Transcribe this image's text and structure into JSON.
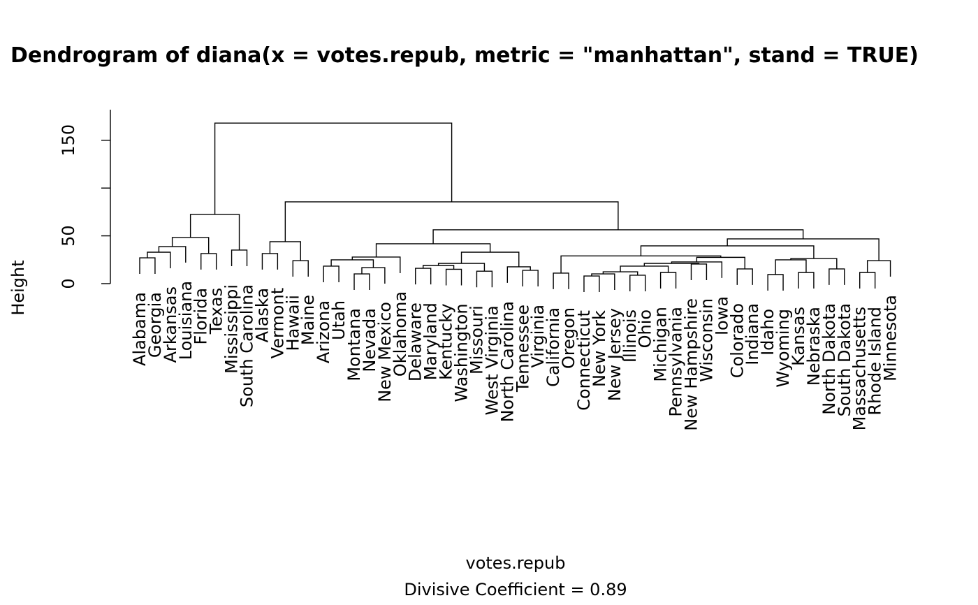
{
  "chart_data": {
    "type": "dendrogram",
    "title": "Dendrogram of  diana(x = votes.repub, metric = \"manhattan\", stand = TRUE)",
    "y_label": "Height",
    "x_label": "votes.repub",
    "subtitle": "Divisive Coefficient =  0.89",
    "ylim": [
      0,
      182
    ],
    "yticks": [
      0,
      50,
      {
        "value": 100,
        "label": null
      },
      150
    ],
    "color": "#000000",
    "tree": {
      "height": 168,
      "children": [
        {
          "height": 72.4,
          "children": [
            {
              "height": 48.3,
              "children": [
                {
                  "height": 38.8,
                  "children": [
                    {
                      "height": 32.9,
                      "children": [
                        {
                          "height": 27,
                          "children": [
                            "Alabama",
                            "Georgia"
                          ]
                        },
                        "Arkansas"
                      ]
                    },
                    "Louisiana"
                  ]
                },
                {
                  "height": 31.5,
                  "children": [
                    "Florida",
                    "Texas"
                  ]
                }
              ]
            },
            {
              "height": 35.1,
              "children": [
                "Mississippi",
                "South Carolina"
              ]
            }
          ]
        },
        {
          "height": 85.6,
          "children": [
            {
              "height": 43.9,
              "children": [
                {
                  "height": 31.5,
                  "children": [
                    "Alaska",
                    "Vermont"
                  ]
                },
                {
                  "height": 24.1,
                  "children": [
                    "Hawaii",
                    "Maine"
                  ]
                }
              ]
            },
            {
              "height": 56.3,
              "children": [
                {
                  "height": 41.7,
                  "children": [
                    {
                      "height": 27.8,
                      "children": [
                        {
                          "height": 24.9,
                          "children": [
                            {
                              "height": 18.3,
                              "children": [
                                "Arizona",
                                "Utah"
                              ]
                            },
                            {
                              "height": 16.8,
                              "children": [
                                {
                                  "height": 10.2,
                                  "children": [
                                    "Montana",
                                    "Nevada"
                                  ]
                                },
                                "New Mexico"
                              ]
                            }
                          ]
                        },
                        "Oklahoma"
                      ]
                    },
                    {
                      "height": 32.9,
                      "children": [
                        {
                          "height": 21.2,
                          "children": [
                            {
                              "height": 19,
                              "children": [
                                {
                                  "height": 16,
                                  "children": [
                                    "Delaware",
                                    "Maryland"
                                  ]
                                },
                                {
                                  "height": 15,
                                  "children": [
                                    "Kentucky",
                                    "Washington"
                                  ]
                                }
                              ]
                            },
                            {
                              "height": 13,
                              "children": [
                                "Missouri",
                                "West Virginia"
                              ]
                            }
                          ]
                        },
                        {
                          "height": 17.6,
                          "children": [
                            "North Carolina",
                            {
                              "height": 13.9,
                              "children": [
                                "Tennessee",
                                "Virginia"
                              ]
                            }
                          ]
                        }
                      ]
                    }
                  ]
                },
                {
                  "height": 46.8,
                  "children": [
                    {
                      "height": 39.5,
                      "children": [
                        {
                          "height": 29,
                          "children": [
                            {
                              "height": 11,
                              "children": [
                                "California",
                                "Oregon"
                              ]
                            },
                            {
                              "height": 27.5,
                              "children": [
                                {
                                  "height": 22.7,
                                  "children": [
                                    {
                                      "height": 21.2,
                                      "children": [
                                        {
                                          "height": 18.3,
                                          "children": [
                                            {
                                              "height": 12.4,
                                              "children": [
                                                {
                                                  "height": 10.2,
                                                  "children": [
                                                    {
                                                      "height": 8,
                                                      "children": [
                                                        "Connecticut",
                                                        "New York"
                                                      ]
                                                    },
                                                    "New Jersey"
                                                  ]
                                                },
                                                {
                                                  "height": 8.8,
                                                  "children": [
                                                    "Illinois",
                                                    "Ohio"
                                                  ]
                                                }
                                              ]
                                            },
                                            {
                                              "height": 11.7,
                                              "children": [
                                                "Michigan",
                                                "Pennsylvania"
                                              ]
                                            }
                                          ]
                                        },
                                        {
                                          "height": 20.5,
                                          "children": [
                                            "New Hampshire",
                                            "Wisconsin"
                                          ]
                                        }
                                      ]
                                    },
                                    "Iowa"
                                  ]
                                },
                                {
                                  "height": 15.4,
                                  "children": [
                                    "Colorado",
                                    "Indiana"
                                  ]
                                }
                              ]
                            }
                          ]
                        },
                        {
                          "height": 26.3,
                          "children": [
                            {
                              "height": 24.9,
                              "children": [
                                {
                                  "height": 9.5,
                                  "children": [
                                    "Idaho",
                                    "Wyoming"
                                  ]
                                },
                                {
                                  "height": 11.7,
                                  "children": [
                                    "Kansas",
                                    "Nebraska"
                                  ]
                                }
                              ]
                            },
                            {
                              "height": 15.4,
                              "children": [
                                "North Dakota",
                                "South Dakota"
                              ]
                            }
                          ]
                        }
                      ]
                    },
                    {
                      "height": 24.1,
                      "children": [
                        {
                          "height": 11.7,
                          "children": [
                            "Massachusetts",
                            "Rhode Island"
                          ]
                        },
                        "Minnesota"
                      ]
                    }
                  ]
                }
              ]
            }
          ]
        }
      ]
    }
  }
}
